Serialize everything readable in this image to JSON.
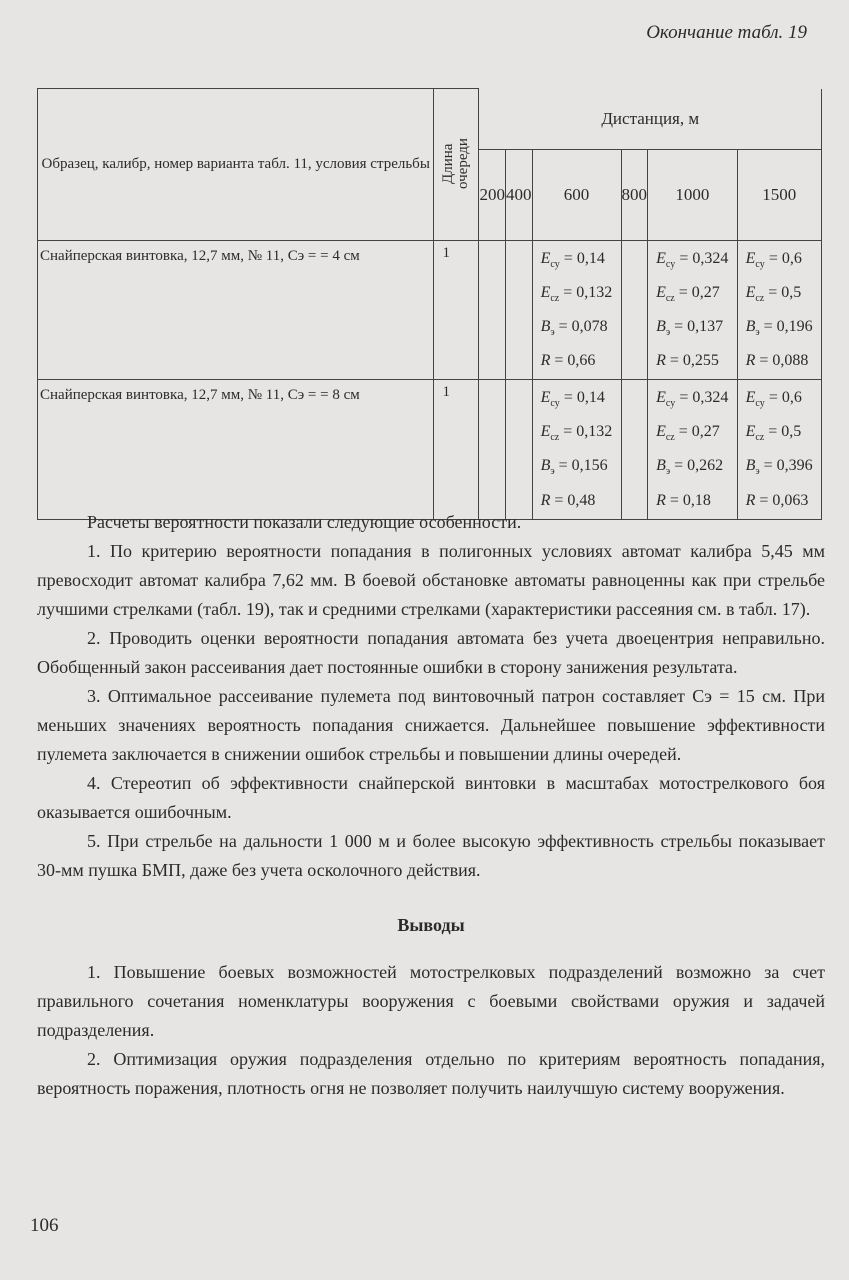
{
  "header": {
    "running_title": "Окончание табл. 19"
  },
  "table": {
    "col_sample": "Образец, калибр, номер варианта табл. 11, условия стрельбы",
    "col_length": "Длина очереди",
    "distance_header": "Дистанция, м",
    "distances": [
      "200",
      "400",
      "600",
      "800",
      "1000",
      "1500"
    ],
    "rows": [
      {
        "sample": "Снайперская винтовка, 12,7 мм, № 11, Cэ = = 4 см",
        "length": "1",
        "cells": {
          "600": [
            {
              "s": "E",
              "sub": "cy",
              "v": "0,14"
            },
            {
              "s": "E",
              "sub": "cz",
              "v": "0,132"
            },
            {
              "s": "B",
              "sub": "э",
              "v": "0,078"
            },
            {
              "s": "R",
              "sub": "",
              "v": "0,66"
            }
          ],
          "1000": [
            {
              "s": "E",
              "sub": "cy",
              "v": "0,324"
            },
            {
              "s": "E",
              "sub": "cz",
              "v": "0,27"
            },
            {
              "s": "B",
              "sub": "э",
              "v": "0,137"
            },
            {
              "s": "R",
              "sub": "",
              "v": "0,255"
            }
          ],
          "1500": [
            {
              "s": "E",
              "sub": "cy",
              "v": "0,6"
            },
            {
              "s": "E",
              "sub": "cz",
              "v": "0,5"
            },
            {
              "s": "B",
              "sub": "э",
              "v": "0,196"
            },
            {
              "s": "R",
              "sub": "",
              "v": "0,088"
            }
          ]
        }
      },
      {
        "sample": "Снайперская винтовка, 12,7 мм, № 11, Cэ = = 8 см",
        "length": "1",
        "cells": {
          "600": [
            {
              "s": "E",
              "sub": "cy",
              "v": "0,14"
            },
            {
              "s": "E",
              "sub": "cz",
              "v": "0,132"
            },
            {
              "s": "B",
              "sub": "э",
              "v": "0,156"
            },
            {
              "s": "R",
              "sub": "",
              "v": "0,48"
            }
          ],
          "1000": [
            {
              "s": "E",
              "sub": "cy",
              "v": "0,324"
            },
            {
              "s": "E",
              "sub": "cz",
              "v": "0,27"
            },
            {
              "s": "B",
              "sub": "э",
              "v": "0,262"
            },
            {
              "s": "R",
              "sub": "",
              "v": "0,18"
            }
          ],
          "1500": [
            {
              "s": "E",
              "sub": "cy",
              "v": "0,6"
            },
            {
              "s": "E",
              "sub": "cz",
              "v": "0,5"
            },
            {
              "s": "B",
              "sub": "э",
              "v": "0,396"
            },
            {
              "s": "R",
              "sub": "",
              "v": "0,063"
            }
          ]
        }
      }
    ]
  },
  "body": {
    "paragraphs": [
      "Расчеты вероятности показали следующие особенности.",
      "1. По критерию вероятности попадания в полигонных условиях автомат калибра 5,45 мм превосходит автомат калибра 7,62 мм. В боевой обстановке автоматы равноценны как при стрельбе лучшими стрелками (табл. 19), так и средними стрелками (характеристики рассеяния см. в табл. 17).",
      "2. Проводить оценки вероятности попадания автомата без учета двоецентрия неправильно. Обобщенный закон рассеивания дает постоянные ошибки в сторону занижения результата.",
      "3. Оптимальное рассеивание пулемета под винтовочный патрон составляет Cэ = 15 см. При меньших значениях вероятность попадания снижается. Дальнейшее повышение эффективности пулемета заключается в снижении ошибок стрельбы и повышении длины очередей.",
      "4. Стереотип об эффективности снайперской винтовки в масштабах мотострелкового боя оказывается ошибочным.",
      "5. При стрельбе на дальности 1 000 м и более высокую эффективность стрельбы показывает 30-мм пушка БМП, даже без учета осколочного действия."
    ],
    "section_title": "Выводы",
    "conclusions": [
      "1. Повышение боевых возможностей мотострелковых подразделений возможно за счет правильного сочетания номенклатуры вооружения с боевыми свойствами оружия и задачей подразделения.",
      "2. Оптимизация оружия подразделения отдельно по критериям вероятность попадания, вероятность поражения, плотность огня не позволяет получить наилучшую систему вооружения."
    ]
  },
  "footer": {
    "page_number": "106"
  }
}
